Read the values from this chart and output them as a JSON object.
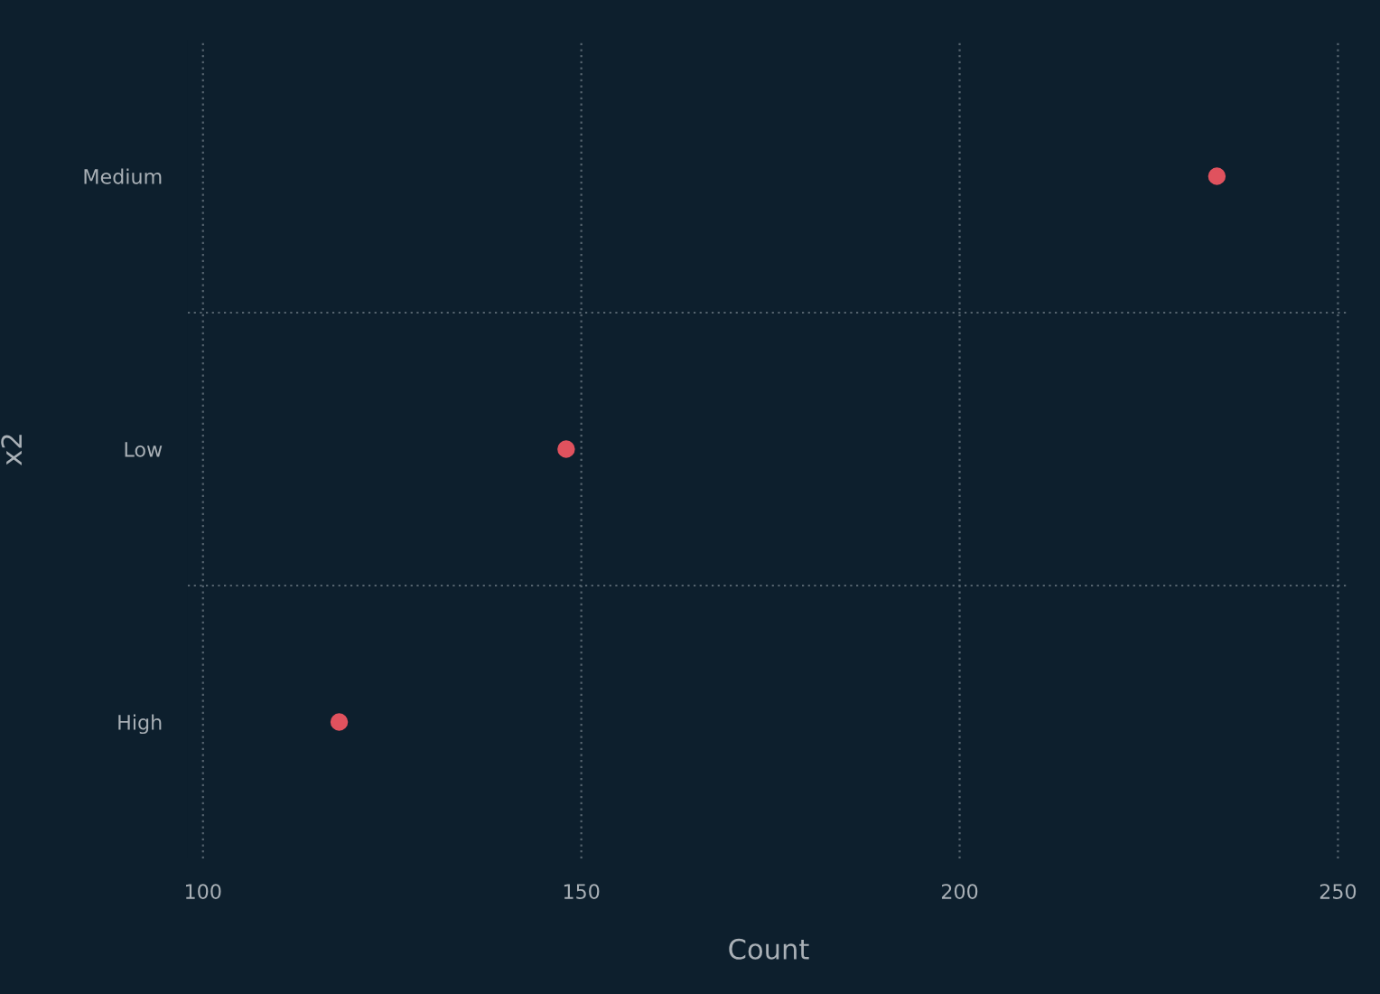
{
  "chart_data": {
    "type": "scatter",
    "orientation": "horizontal",
    "xlabel": "Count",
    "ylabel": "x2",
    "categories": [
      "Medium",
      "Low",
      "High"
    ],
    "series": [
      {
        "color": "#e0525e",
        "values": [
          234,
          148,
          118
        ]
      }
    ],
    "xlim": [
      98,
      251.5
    ],
    "xticks": [
      100,
      150,
      200,
      250
    ],
    "grid": true,
    "marker": "circle"
  }
}
